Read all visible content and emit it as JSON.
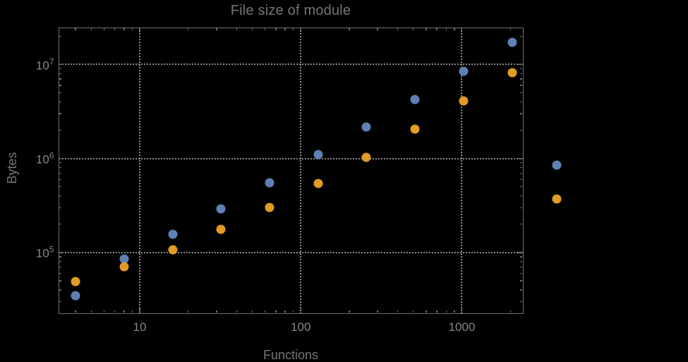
{
  "chart_data": {
    "type": "scatter",
    "title": "File size of module",
    "xlabel": "Functions",
    "ylabel": "Bytes",
    "x_scale": "log",
    "y_scale": "log",
    "x_range": [
      3.12,
      2404
    ],
    "y_range": [
      22450,
      24900000
    ],
    "grid": "dotted-major-only",
    "legend": "none",
    "frame": true,
    "background": "#000000",
    "x_ticks": [
      {
        "label": "10",
        "value": 10
      },
      {
        "label": "100",
        "value": 100
      },
      {
        "label": "1000",
        "value": 1000
      }
    ],
    "y_ticks": [
      {
        "base": "10",
        "exp": "5",
        "value": 100000
      },
      {
        "base": "10",
        "exp": "6",
        "value": 1000000
      },
      {
        "base": "10",
        "exp": "7",
        "value": 10000000
      }
    ],
    "series": [
      {
        "name": "series-1",
        "color": "#5E81B5",
        "points": [
          [
            4,
            35000
          ],
          [
            8,
            86000
          ],
          [
            16,
            156000
          ],
          [
            32,
            293000
          ],
          [
            64,
            551000
          ],
          [
            128,
            1110000
          ],
          [
            256,
            2170000
          ],
          [
            512,
            4280000
          ],
          [
            1024,
            8550000
          ],
          [
            2048,
            17100000
          ],
          [
            3900,
            850000
          ]
        ]
      },
      {
        "name": "series-2",
        "color": "#E19C24",
        "points": [
          [
            4,
            49000
          ],
          [
            8,
            71000
          ],
          [
            16,
            106000
          ],
          [
            32,
            175000
          ],
          [
            64,
            299000
          ],
          [
            128,
            540000
          ],
          [
            256,
            1030000
          ],
          [
            512,
            2050000
          ],
          [
            1024,
            4100000
          ],
          [
            2048,
            8170000
          ],
          [
            3900,
            370000
          ]
        ]
      }
    ]
  }
}
